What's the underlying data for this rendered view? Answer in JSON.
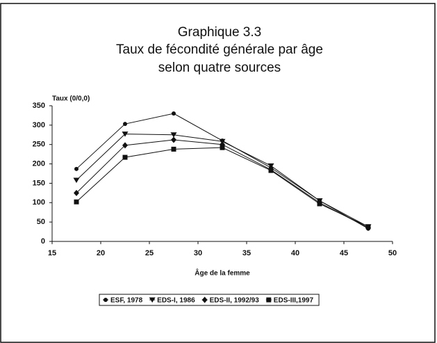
{
  "chart_data": {
    "type": "line",
    "title": [
      "Graphique 3.3",
      "Taux de fécondité générale par âge",
      "selon quatre sources"
    ],
    "y_label": "Taux (0/0,0)",
    "x_label": "Âge de la femme",
    "x": [
      17.5,
      22.5,
      27.5,
      32.5,
      37.5,
      42.5,
      47.5
    ],
    "series": [
      {
        "name": "ESF, 1978",
        "color": "#111111",
        "marker": "circle",
        "values": [
          187,
          303,
          330,
          260,
          190,
          105,
          33
        ]
      },
      {
        "name": "EDS-I, 1986",
        "color": "#111111",
        "marker": "triangle-down",
        "values": [
          158,
          277,
          275,
          258,
          195,
          105,
          38
        ]
      },
      {
        "name": "EDS-II, 1992/93",
        "color": "#111111",
        "marker": "diamond",
        "values": [
          125,
          248,
          262,
          250,
          185,
          100,
          35
        ]
      },
      {
        "name": "EDS-III,1997",
        "color": "#111111",
        "marker": "square",
        "values": [
          102,
          217,
          238,
          242,
          183,
          97,
          38
        ]
      }
    ],
    "xlim": [
      15,
      50
    ],
    "xticks": [
      15,
      20,
      25,
      30,
      35,
      40,
      45,
      50
    ],
    "ylim": [
      0,
      350
    ],
    "yticks": [
      0,
      50,
      100,
      150,
      200,
      250,
      300,
      350
    ],
    "grid": false,
    "legend": "bottom"
  }
}
